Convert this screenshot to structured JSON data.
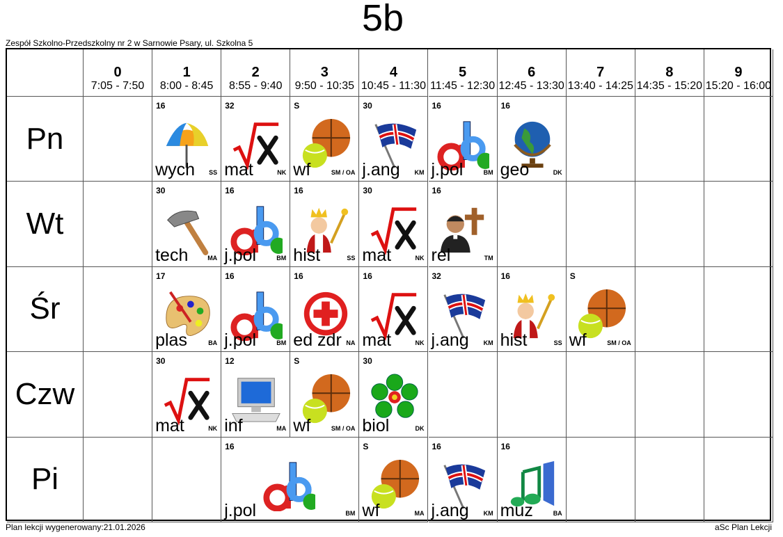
{
  "title": "5b",
  "school": "Zespół Szkolno-Przedszkolny nr 2 w Sarnowie Psary, ul. Szkolna 5",
  "periods": [
    {
      "num": "0",
      "time": "7:05 - 7:50"
    },
    {
      "num": "1",
      "time": "8:00 - 8:45"
    },
    {
      "num": "2",
      "time": "8:55 - 9:40"
    },
    {
      "num": "3",
      "time": "9:50 - 10:35"
    },
    {
      "num": "4",
      "time": "10:45 - 11:30"
    },
    {
      "num": "5",
      "time": "11:45 - 12:30"
    },
    {
      "num": "6",
      "time": "12:45 - 13:30"
    },
    {
      "num": "7",
      "time": "13:40 - 14:25"
    },
    {
      "num": "8",
      "time": "14:35 - 15:20"
    },
    {
      "num": "9",
      "time": "15:20 - 16:00"
    }
  ],
  "days": [
    {
      "name": "Pn",
      "lessons": [
        {
          "period": 1,
          "span": 1,
          "room": "16",
          "subject": "wych",
          "teacher": "SS",
          "icon": "umbrella-icon"
        },
        {
          "period": 2,
          "span": 1,
          "room": "32",
          "subject": "mat",
          "teacher": "NK",
          "icon": "math-root-icon"
        },
        {
          "period": 3,
          "span": 1,
          "room": "S",
          "subject": "wf",
          "teacher": "SM / OA",
          "icon": "sports-balls-icon"
        },
        {
          "period": 4,
          "span": 1,
          "room": "30",
          "subject": "j.ang",
          "teacher": "KM",
          "icon": "uk-flag-icon"
        },
        {
          "period": 5,
          "span": 1,
          "room": "16",
          "subject": "j.pol",
          "teacher": "BM",
          "icon": "abc-letters-icon"
        },
        {
          "period": 6,
          "span": 1,
          "room": "16",
          "subject": "geo",
          "teacher": "DK",
          "icon": "globe-icon"
        }
      ]
    },
    {
      "name": "Wt",
      "lessons": [
        {
          "period": 1,
          "span": 1,
          "room": "30",
          "subject": "tech",
          "teacher": "MA",
          "icon": "hammer-icon"
        },
        {
          "period": 2,
          "span": 1,
          "room": "16",
          "subject": "j.pol",
          "teacher": "BM",
          "icon": "abc-letters-icon"
        },
        {
          "period": 3,
          "span": 1,
          "room": "16",
          "subject": "hist",
          "teacher": "SS",
          "icon": "king-icon"
        },
        {
          "period": 4,
          "span": 1,
          "room": "30",
          "subject": "mat",
          "teacher": "NK",
          "icon": "math-root-icon"
        },
        {
          "period": 5,
          "span": 1,
          "room": "16",
          "subject": "rel",
          "teacher": "TM",
          "icon": "priest-cross-icon"
        }
      ]
    },
    {
      "name": "Śr",
      "lessons": [
        {
          "period": 1,
          "span": 1,
          "room": "17",
          "subject": "plas",
          "teacher": "BA",
          "icon": "palette-icon"
        },
        {
          "period": 2,
          "span": 1,
          "room": "16",
          "subject": "j.pol",
          "teacher": "BM",
          "icon": "abc-letters-icon"
        },
        {
          "period": 3,
          "span": 1,
          "room": "16",
          "subject": "ed zdr",
          "teacher": "NA",
          "icon": "red-cross-icon"
        },
        {
          "period": 4,
          "span": 1,
          "room": "16",
          "subject": "mat",
          "teacher": "NK",
          "icon": "math-root-icon"
        },
        {
          "period": 5,
          "span": 1,
          "room": "32",
          "subject": "j.ang",
          "teacher": "KM",
          "icon": "uk-flag-icon"
        },
        {
          "period": 6,
          "span": 1,
          "room": "16",
          "subject": "hist",
          "teacher": "SS",
          "icon": "king-icon"
        },
        {
          "period": 7,
          "span": 1,
          "room": "S",
          "subject": "wf",
          "teacher": "SM / OA",
          "icon": "sports-balls-icon"
        }
      ]
    },
    {
      "name": "Czw",
      "lessons": [
        {
          "period": 1,
          "span": 1,
          "room": "30",
          "subject": "mat",
          "teacher": "NK",
          "icon": "math-root-icon"
        },
        {
          "period": 2,
          "span": 1,
          "room": "12",
          "subject": "inf",
          "teacher": "MA",
          "icon": "computer-icon"
        },
        {
          "period": 3,
          "span": 1,
          "room": "S",
          "subject": "wf",
          "teacher": "SM / OA",
          "icon": "sports-balls-icon"
        },
        {
          "period": 4,
          "span": 1,
          "room": "30",
          "subject": "biol",
          "teacher": "DK",
          "icon": "flower-icon"
        }
      ]
    },
    {
      "name": "Pi",
      "lessons": [
        {
          "period": 2,
          "span": 2,
          "room": "16",
          "subject": "j.pol",
          "teacher": "BM",
          "icon": "abc-letters-icon"
        },
        {
          "period": 4,
          "span": 1,
          "room": "S",
          "subject": "wf",
          "teacher": "MA",
          "icon": "sports-balls-icon"
        },
        {
          "period": 5,
          "span": 1,
          "room": "16",
          "subject": "j.ang",
          "teacher": "KM",
          "icon": "uk-flag-icon"
        },
        {
          "period": 6,
          "span": 1,
          "room": "16",
          "subject": "muz",
          "teacher": "BA",
          "icon": "music-note-icon"
        }
      ]
    }
  ],
  "footer": {
    "generated": "Plan lekcji wygenerowany:21.01.2026",
    "brand": "aSc Plan Lekcji"
  }
}
